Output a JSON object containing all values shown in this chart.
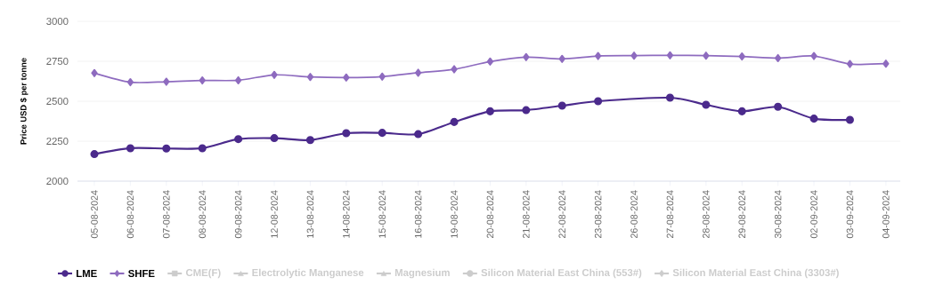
{
  "chart_data": {
    "type": "line",
    "ylabel": "Price USD $ per tonne",
    "categories": [
      "05-08-2024",
      "06-08-2024",
      "07-08-2024",
      "08-08-2024",
      "09-08-2024",
      "12-08-2024",
      "13-08-2024",
      "14-08-2024",
      "15-08-2024",
      "16-08-2024",
      "19-08-2024",
      "20-08-2024",
      "21-08-2024",
      "22-08-2024",
      "23-08-2024",
      "26-08-2024",
      "27-08-2024",
      "28-08-2024",
      "29-08-2024",
      "30-08-2024",
      "02-09-2024",
      "03-09-2024",
      "04-09-2024"
    ],
    "series": [
      {
        "name": "LME",
        "color": "#4b2a8c",
        "marker": "circle",
        "values": [
          2169,
          2206,
          2204,
          2206,
          2263,
          2269,
          2257,
          2300,
          2302,
          2294,
          2370,
          2437,
          2444,
          2472,
          2500,
          null,
          2522,
          2478,
          2437,
          2465,
          2391,
          2383,
          null
        ]
      },
      {
        "name": "SHFE",
        "color": "#8e6bbf",
        "marker": "diamond",
        "values": [
          2676,
          2619,
          2622,
          2630,
          2631,
          2665,
          2652,
          2648,
          2654,
          2678,
          2700,
          2748,
          2776,
          2765,
          2783,
          2785,
          2787,
          2785,
          2780,
          2770,
          2783,
          2733,
          2735
        ]
      },
      {
        "name": "CME(F)",
        "color": "#cccccc",
        "marker": "square",
        "values": [
          null,
          null,
          null,
          null,
          null,
          null,
          null,
          null,
          null,
          null,
          null,
          null,
          null,
          null,
          null,
          null,
          null,
          null,
          null,
          null,
          null,
          null,
          null
        ]
      },
      {
        "name": "Electrolytic Manganese",
        "color": "#cccccc",
        "marker": "triangle",
        "values": [
          null,
          null,
          null,
          null,
          null,
          null,
          null,
          null,
          null,
          null,
          null,
          null,
          null,
          null,
          null,
          null,
          null,
          null,
          null,
          null,
          null,
          null,
          null
        ]
      },
      {
        "name": "Magnesium",
        "color": "#cccccc",
        "marker": "triangle",
        "values": [
          null,
          null,
          null,
          null,
          null,
          null,
          null,
          null,
          null,
          null,
          null,
          null,
          null,
          null,
          null,
          null,
          null,
          null,
          null,
          null,
          null,
          null,
          null
        ]
      },
      {
        "name": "Silicon Material East China (553#)",
        "color": "#cccccc",
        "marker": "circle",
        "values": [
          null,
          null,
          null,
          null,
          null,
          null,
          null,
          null,
          null,
          null,
          null,
          null,
          null,
          null,
          null,
          null,
          null,
          null,
          null,
          null,
          null,
          null,
          null
        ]
      },
      {
        "name": "Silicon Material East China (3303#)",
        "color": "#cccccc",
        "marker": "diamond",
        "values": [
          null,
          null,
          null,
          null,
          null,
          null,
          null,
          null,
          null,
          null,
          null,
          null,
          null,
          null,
          null,
          null,
          null,
          null,
          null,
          null,
          null,
          null,
          null
        ]
      }
    ],
    "ylim": [
      2000,
      3000
    ],
    "yticks": [
      2000,
      2250,
      2500,
      2750,
      3000
    ],
    "grid": "y",
    "legend": "bottom"
  }
}
